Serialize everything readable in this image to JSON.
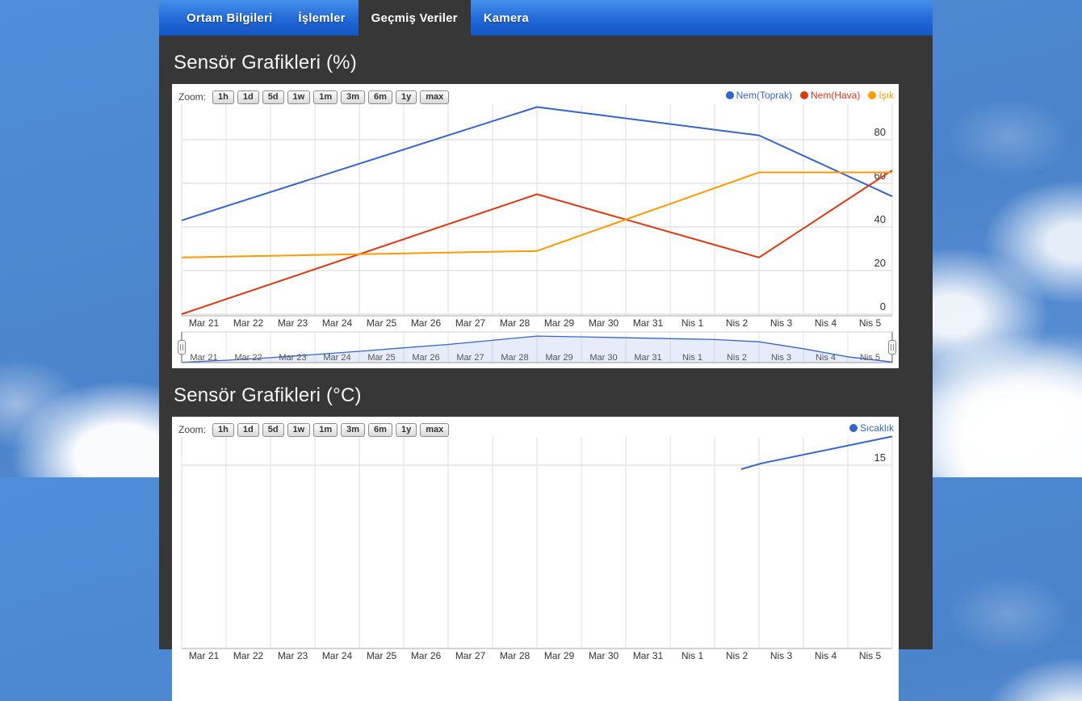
{
  "navbar": {
    "tabs": [
      {
        "id": "ortam-bilgileri",
        "label": "Ortam Bilgileri",
        "active": false
      },
      {
        "id": "islemler",
        "label": "İşlemler",
        "active": false
      },
      {
        "id": "gecmis-veriler",
        "label": "Geçmiş Veriler",
        "active": true
      },
      {
        "id": "kamera",
        "label": "Kamera",
        "active": false
      }
    ]
  },
  "zoom_label": "Zoom:",
  "zoom_buttons": [
    "1h",
    "1d",
    "5d",
    "1w",
    "1m",
    "3m",
    "6m",
    "1y",
    "max"
  ],
  "colors": {
    "navbar_top": "#4490ea",
    "navbar_bottom": "#1356c4",
    "panel_background": "#373737",
    "series_blue": "#3366cc",
    "series_red": "#dc3912",
    "series_orange": "#ff9900",
    "grid_line": "#d9d9d9",
    "axis_text": "#333333"
  },
  "chart_data": [
    {
      "type": "line",
      "title": "Sensör Grafikleri (%)",
      "x_labels": [
        "Mar 21",
        "Mar 22",
        "Mar 23",
        "Mar 24",
        "Mar 25",
        "Mar 26",
        "Mar 27",
        "Mar 28",
        "Mar 29",
        "Mar 30",
        "Mar 31",
        "Nis 1",
        "Nis 2",
        "Nis 3",
        "Nis 4",
        "Nis 5"
      ],
      "y_ticks": [
        0,
        20,
        40,
        60,
        80
      ],
      "ylim": [
        0,
        96
      ],
      "grid": true,
      "legend_position": "top-right",
      "series": [
        {
          "name": "Nem(Toprak)",
          "color": "#3366cc",
          "points": [
            [
              0,
              43
            ],
            [
              8,
              95
            ],
            [
              13,
              82
            ],
            [
              16,
              54
            ]
          ]
        },
        {
          "name": "Nem(Hava)",
          "color": "#dc3912",
          "points": [
            [
              0,
              0
            ],
            [
              8,
              55
            ],
            [
              13,
              26
            ],
            [
              16,
              66
            ]
          ]
        },
        {
          "name": "Işık",
          "color": "#ff9900",
          "points": [
            [
              0,
              26
            ],
            [
              8,
              29
            ],
            [
              13,
              65
            ],
            [
              16,
              65
            ]
          ]
        }
      ],
      "navigator": {
        "color": "#3366cc",
        "fill": "rgba(51,102,204,0.12)",
        "ylim": [
          0,
          95
        ],
        "points": [
          [
            0,
            1
          ],
          [
            1,
            8
          ],
          [
            2,
            17
          ],
          [
            3,
            28
          ],
          [
            4,
            39
          ],
          [
            5,
            51
          ],
          [
            6,
            63
          ],
          [
            7,
            77
          ],
          [
            8,
            92
          ],
          [
            9,
            89
          ],
          [
            10,
            86
          ],
          [
            11,
            83
          ],
          [
            12,
            80
          ],
          [
            13,
            72
          ],
          [
            14,
            48
          ],
          [
            15,
            20
          ],
          [
            16,
            2
          ]
        ]
      }
    },
    {
      "type": "line",
      "title": "Sensör Grafikleri (°C)",
      "x_labels": [
        "Mar 21",
        "Mar 22",
        "Mar 23",
        "Mar 24",
        "Mar 25",
        "Mar 26",
        "Mar 27",
        "Mar 28",
        "Mar 29",
        "Mar 30",
        "Mar 31",
        "Nis 1",
        "Nis 2",
        "Nis 3",
        "Nis 4",
        "Nis 5"
      ],
      "y_ticks": [
        15
      ],
      "ylim_visible_note": "only top strip of plot visible; y=15 gridline shown",
      "grid": true,
      "legend_position": "top-right",
      "series": [
        {
          "name": "Sıcaklık",
          "color": "#3366cc",
          "points": [
            [
              12.6,
              14.55
            ],
            [
              13.05,
              15.2
            ],
            [
              16,
              18.3
            ]
          ]
        }
      ]
    }
  ]
}
